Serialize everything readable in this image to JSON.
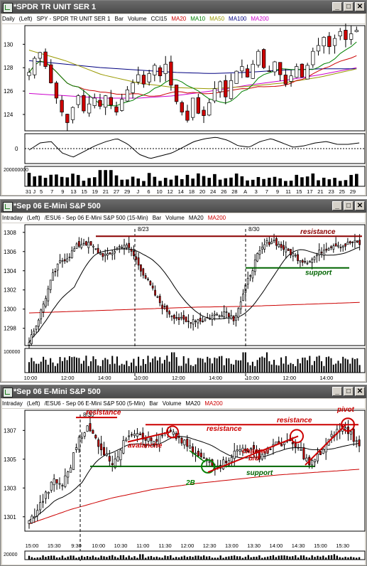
{
  "windows": [
    {
      "title": "*SPDR TR UNIT SER 1",
      "info": [
        {
          "text": "Daily",
          "color": "#000000"
        },
        {
          "text": "(Left)",
          "color": "#000000"
        },
        {
          "text": "SPY - SPDR TR UNIT SER 1",
          "color": "#000000"
        },
        {
          "text": "Bar",
          "color": "#000000"
        },
        {
          "text": "Volume",
          "color": "#000000"
        },
        {
          "text": "CCI15",
          "color": "#000000"
        },
        {
          "text": "MA20",
          "color": "#cc0000"
        },
        {
          "text": "MA10",
          "color": "#008000"
        },
        {
          "text": "MA50",
          "color": "#999900"
        },
        {
          "text": "MA100",
          "color": "#000080"
        },
        {
          "text": "MA200",
          "color": "#cc00cc"
        }
      ]
    },
    {
      "title": "*Sep 06  E-Mini S&P 500",
      "info": [
        {
          "text": "Intraday",
          "color": "#000000"
        },
        {
          "text": "(Left)",
          "color": "#000000"
        },
        {
          "text": "/ESU6 - Sep 06  E-Mini S&P 500  (15-Min)",
          "color": "#000000"
        },
        {
          "text": "Bar",
          "color": "#000000"
        },
        {
          "text": "Volume",
          "color": "#000000"
        },
        {
          "text": "MA20",
          "color": "#000000"
        },
        {
          "text": "MA200",
          "color": "#cc0000"
        }
      ]
    },
    {
      "title": "*Sep 06  E-Mini S&P 500",
      "info": [
        {
          "text": "Intraday",
          "color": "#000000"
        },
        {
          "text": "(Left)",
          "color": "#000000"
        },
        {
          "text": "/ESU6 - Sep 06  E-Mini S&P 500  (5-Min)",
          "color": "#000000"
        },
        {
          "text": "Bar",
          "color": "#000000"
        },
        {
          "text": "Volume",
          "color": "#000000"
        },
        {
          "text": "MA20",
          "color": "#000000"
        },
        {
          "text": "MA200",
          "color": "#cc0000"
        }
      ]
    }
  ],
  "window_buttons": {
    "minimize": "_",
    "maximize": "□",
    "close": "✕"
  },
  "icons": {
    "app": "chart-app-icon"
  },
  "colors": {
    "up": "#ffffff",
    "down": "#cc0000",
    "annotation": "#cc0000",
    "support": "#008000"
  },
  "chart_data": [
    {
      "type": "candlestick",
      "title": "SPY daily",
      "y_ticks": [
        124,
        126,
        128,
        130
      ],
      "ylim": [
        122.6,
        131.6
      ],
      "x_labels": [
        "31 J",
        "5",
        "7",
        "9",
        "13",
        "15",
        "19",
        "21",
        "27",
        "29",
        "J",
        "6",
        "10",
        "12",
        "14",
        "18",
        "20",
        "24",
        "26",
        "28",
        "A",
        "3",
        "7",
        "9",
        "11",
        "15",
        "17",
        "21",
        "23",
        "25",
        "29"
      ],
      "indicator": {
        "name": "CCI15",
        "y_ticks": [
          0
        ]
      },
      "volume": {
        "y_ticks": [
          "200000000"
        ]
      },
      "closes": [
        127.6,
        128.8,
        129.3,
        128.1,
        126.7,
        125.4,
        124.2,
        123.3,
        124.6,
        125.6,
        124.3,
        124.9,
        125.4,
        124.7,
        125.6,
        124.8,
        124.2,
        125.3,
        126.1,
        126.7,
        127.4,
        126.6,
        127.5,
        128.2,
        127.3,
        128.3,
        126.5,
        125.1,
        124.2,
        123.5,
        125.4,
        124.1,
        123.9,
        125.0,
        126.2,
        126.8,
        125.5,
        126.9,
        127.7,
        128.1,
        127.2,
        128.3,
        129.4,
        128.0,
        127.7,
        128.5,
        127.4,
        126.6,
        127.3,
        128.1,
        127.2,
        128.2,
        129.4,
        129.9,
        130.6,
        129.8,
        130.5,
        131.1,
        130.4,
        130.9,
        131.2
      ]
    },
    {
      "type": "candlestick",
      "title": "ESU6 15-Min",
      "y_ticks": [
        1298,
        1300,
        1302,
        1304,
        1306,
        1308
      ],
      "ylim": [
        1296.2,
        1308.8
      ],
      "x_labels": [
        "10:00",
        "12:00",
        "14:00",
        "10:00",
        "12:00",
        "14:00",
        "10:00",
        "12:00",
        "14:00"
      ],
      "session_labels": [
        "8/23",
        "8/30"
      ],
      "annotations": [
        "resistance",
        "support"
      ],
      "volume": {
        "y_ticks": [
          "100000"
        ]
      }
    },
    {
      "type": "candlestick",
      "title": "ESU6 5-Min",
      "y_ticks": [
        1301,
        1303,
        1305,
        1307
      ],
      "ylim": [
        1300.0,
        1308.4
      ],
      "x_labels": [
        "15:00",
        "15:30",
        "9:30",
        "10:00",
        "10:30",
        "11:00",
        "11:30",
        "12:00",
        "12:30",
        "13:00",
        "13:30",
        "14:00",
        "14:30",
        "15:00",
        "15:30"
      ],
      "session_labels": [
        "8/30"
      ],
      "annotations": [
        "resistance",
        "resistance",
        "resistance",
        "avalanche",
        "2B",
        "support",
        "channel b/d",
        "pivot"
      ],
      "volume": {
        "y_ticks": [
          "20000"
        ]
      }
    }
  ]
}
